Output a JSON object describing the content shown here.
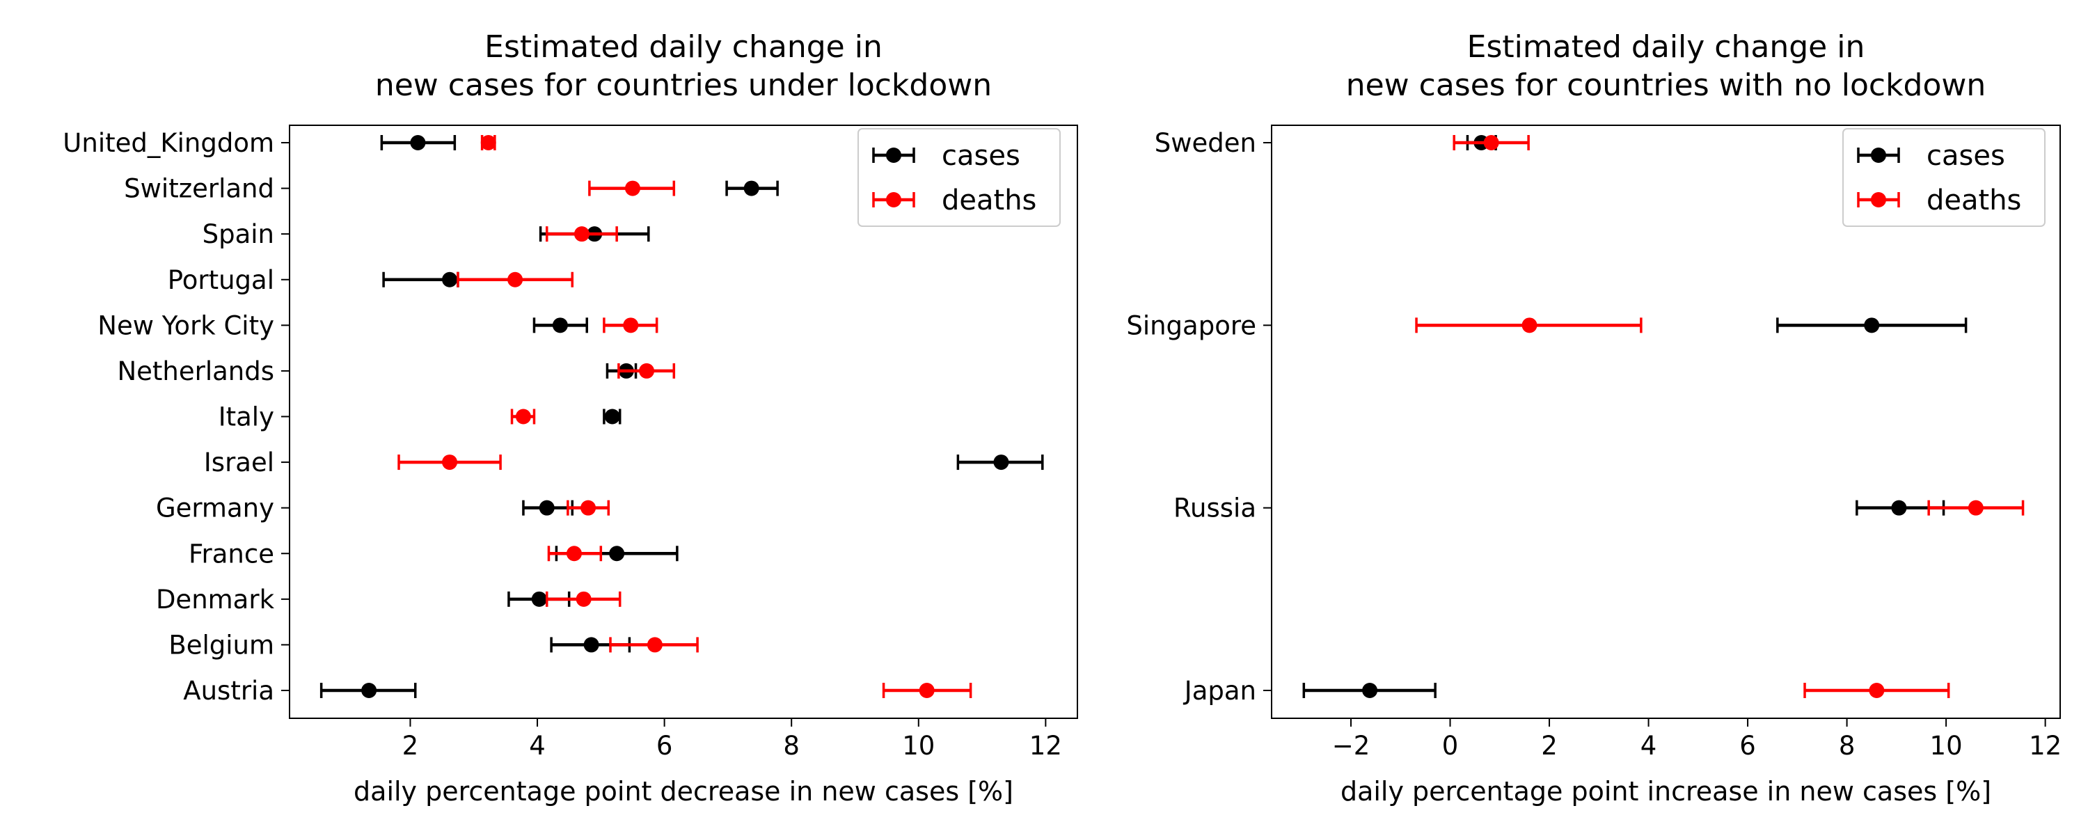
{
  "chart_data": [
    {
      "type": "errorbar",
      "orientation": "horizontal",
      "title": "Estimated daily change in\nnew cases for countries under lockdown",
      "xlabel": "daily percentage point decrease in new cases [%]",
      "ylabel": "",
      "xlim": [
        0.1,
        12.5
      ],
      "xticks": [
        2,
        4,
        6,
        8,
        10,
        12
      ],
      "grid": false,
      "legend_position": "top-right",
      "categories": [
        "United_Kingdom",
        "Switzerland",
        "Spain",
        "Portugal",
        "New York City",
        "Netherlands",
        "Italy",
        "Israel",
        "Germany",
        "France",
        "Denmark",
        "Belgium",
        "Austria"
      ],
      "series": [
        {
          "name": "cases",
          "color": "#000000",
          "values": [
            2.12,
            7.37,
            4.9,
            2.62,
            4.36,
            5.4,
            5.18,
            11.3,
            4.15,
            5.25,
            4.03,
            4.85,
            1.35
          ],
          "err_low": [
            1.55,
            6.98,
            4.05,
            1.58,
            3.95,
            5.1,
            5.05,
            10.62,
            3.78,
            4.3,
            3.55,
            4.22,
            0.6
          ],
          "err_high": [
            2.7,
            7.78,
            5.75,
            2.75,
            4.78,
            5.55,
            5.3,
            11.95,
            4.55,
            6.2,
            4.5,
            5.45,
            2.08
          ]
        },
        {
          "name": "deaths",
          "color": "#ff0000",
          "values": [
            3.23,
            5.5,
            4.7,
            3.65,
            5.47,
            5.72,
            3.78,
            2.62,
            4.8,
            4.58,
            4.73,
            5.85,
            10.13
          ],
          "err_low": [
            3.13,
            4.82,
            4.15,
            2.75,
            5.05,
            5.28,
            3.6,
            1.82,
            4.48,
            4.18,
            4.15,
            5.15,
            9.45
          ],
          "err_high": [
            3.33,
            6.15,
            5.25,
            4.55,
            5.88,
            6.15,
            3.95,
            3.42,
            5.12,
            5.0,
            5.3,
            6.52,
            10.82
          ]
        }
      ]
    },
    {
      "type": "errorbar",
      "orientation": "horizontal",
      "title": "Estimated daily change in\nnew cases for countries with no lockdown",
      "xlabel": "daily percentage point increase in new cases [%]",
      "ylabel": "",
      "xlim": [
        -3.6,
        12.3
      ],
      "xticks": [
        -2,
        0,
        2,
        4,
        6,
        8,
        10,
        12
      ],
      "grid": false,
      "legend_position": "top-right",
      "categories": [
        "Sweden",
        "Singapore",
        "Russia",
        "Japan"
      ],
      "series": [
        {
          "name": "cases",
          "color": "#000000",
          "values": [
            0.63,
            8.5,
            9.05,
            -1.62
          ],
          "err_low": [
            0.35,
            6.6,
            8.2,
            -2.95
          ],
          "err_high": [
            0.92,
            10.4,
            9.95,
            -0.3
          ]
        },
        {
          "name": "deaths",
          "color": "#ff0000",
          "values": [
            0.83,
            1.6,
            10.6,
            8.6
          ],
          "err_low": [
            0.08,
            -0.68,
            9.65,
            7.15
          ],
          "err_high": [
            1.58,
            3.85,
            11.55,
            10.05
          ]
        }
      ]
    }
  ]
}
